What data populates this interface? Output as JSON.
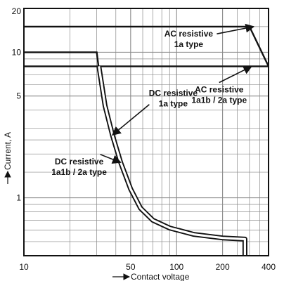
{
  "chart_data": {
    "type": "line",
    "scale": {
      "x": "log",
      "y": "log"
    },
    "grid": true,
    "xlim": [
      10,
      400
    ],
    "ylim": [
      0.4,
      20
    ],
    "xlabel": "Contact voltage",
    "ylabel": "Current, A",
    "x_ticks": [
      {
        "value": 10,
        "label": "10"
      },
      {
        "value": 50,
        "label": "50"
      },
      {
        "value": 100,
        "label": "100"
      },
      {
        "value": 200,
        "label": "200"
      },
      {
        "value": 400,
        "label": "400"
      }
    ],
    "y_ticks": [
      {
        "value": 1,
        "label": "1"
      },
      {
        "value": 5,
        "label": "5"
      },
      {
        "value": 10,
        "label": "10"
      },
      {
        "value": 20,
        "label": "20"
      }
    ],
    "series": [
      {
        "id": "ac-1a",
        "name": "AC resistive 1a type",
        "style": "single",
        "points": [
          [
            10,
            15
          ],
          [
            300,
            15
          ],
          [
            400,
            8
          ]
        ]
      },
      {
        "id": "ac-1a1b",
        "name": "AC resistive 1a1b / 2a type",
        "style": "single",
        "points": [
          [
            10,
            8
          ],
          [
            400,
            8
          ]
        ]
      },
      {
        "id": "dc-1a",
        "name": "DC resistive 1a type",
        "style": "single",
        "points": [
          [
            10,
            10
          ],
          [
            30,
            10
          ],
          [
            31,
            7.6
          ],
          [
            34,
            4.3
          ],
          [
            38,
            2.7
          ],
          [
            43,
            1.75
          ],
          [
            50,
            1.15
          ],
          [
            58,
            0.85
          ],
          [
            70,
            0.7
          ],
          [
            90,
            0.62
          ],
          [
            130,
            0.56
          ],
          [
            200,
            0.53
          ],
          [
            280,
            0.52
          ],
          [
            280,
            0.4
          ]
        ]
      },
      {
        "id": "dc-1a1b",
        "name": "DC resistive 1a1b / 2a type",
        "style": "double",
        "points": [
          [
            31,
            8
          ],
          [
            34,
            4.3
          ],
          [
            38,
            2.7
          ],
          [
            43,
            1.75
          ],
          [
            50,
            1.15
          ],
          [
            58,
            0.85
          ],
          [
            70,
            0.7
          ],
          [
            90,
            0.62
          ],
          [
            130,
            0.56
          ],
          [
            200,
            0.53
          ],
          [
            280,
            0.52
          ],
          [
            280,
            0.4
          ]
        ]
      }
    ],
    "annotations": [
      {
        "id": "ac-1a",
        "lines": [
          "AC resistive",
          "1a type"
        ],
        "at": [
          120,
          12.8
        ],
        "arrow_to": [
          320,
          15
        ]
      },
      {
        "id": "ac-1a1b",
        "lines": [
          "AC resistive",
          "1a1b / 2a type"
        ],
        "at": [
          190,
          5.3
        ],
        "arrow_to": [
          310,
          8
        ]
      },
      {
        "id": "dc-1a",
        "lines": [
          "DC resistive",
          "1a type"
        ],
        "at": [
          95,
          5.0
        ],
        "arrow_to": [
          38,
          2.7
        ]
      },
      {
        "id": "dc-1a1b",
        "lines": [
          "DC resistive",
          "1a1b / 2a type"
        ],
        "at": [
          23,
          1.7
        ],
        "arrow_to": [
          43,
          1.75
        ]
      }
    ],
    "colors": {
      "ink": "#111111",
      "grid": "#8a8a8a",
      "background": "#ffffff"
    }
  }
}
